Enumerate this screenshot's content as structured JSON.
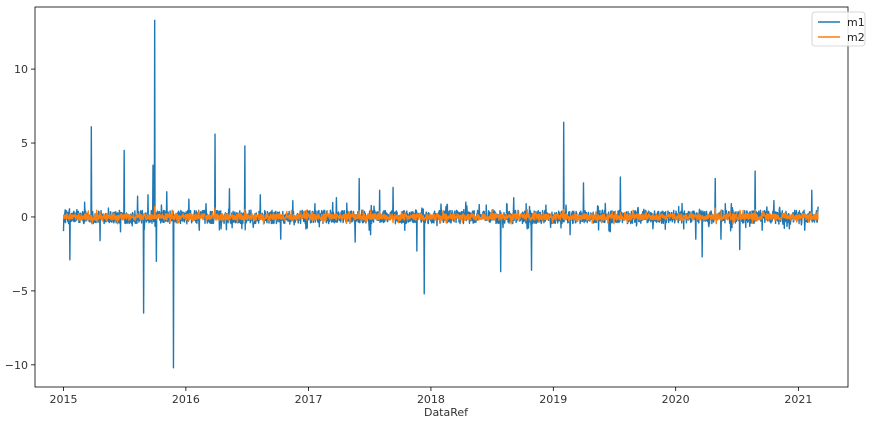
{
  "chart_data": {
    "type": "line",
    "xlabel": "DataRef",
    "ylabel": "",
    "title": "",
    "x_range": [
      "2015-01-01",
      "2021-03-01"
    ],
    "xlim": [
      "2014-10-08",
      "2021-05-29"
    ],
    "ylim": [
      -11.5,
      14.2
    ],
    "x_ticks": [
      "2015",
      "2016",
      "2017",
      "2018",
      "2019",
      "2020",
      "2021"
    ],
    "y_ticks": [
      -10,
      -5,
      0,
      5,
      10
    ],
    "grid": false,
    "legend_position": "top-right",
    "series": [
      {
        "name": "m1",
        "color": "#1f77b4",
        "spikes": [
          [
            "2015-01-20",
            -2.9
          ],
          [
            "2015-02-10",
            0.5
          ],
          [
            "2015-03-05",
            1.0
          ],
          [
            "2015-03-25",
            6.1
          ],
          [
            "2015-04-20",
            -1.6
          ],
          [
            "2015-05-15",
            0.6
          ],
          [
            "2015-06-20",
            -1.0
          ],
          [
            "2015-07-01",
            4.5
          ],
          [
            "2015-07-25",
            -0.6
          ],
          [
            "2015-08-10",
            1.4
          ],
          [
            "2015-08-28",
            -6.5
          ],
          [
            "2015-09-10",
            1.5
          ],
          [
            "2015-09-25",
            3.5
          ],
          [
            "2015-09-30",
            13.3
          ],
          [
            "2015-10-05",
            -3.0
          ],
          [
            "2015-10-20",
            0.8
          ],
          [
            "2015-11-05",
            1.7
          ],
          [
            "2015-11-25",
            -10.2
          ],
          [
            "2016-01-10",
            1.2
          ],
          [
            "2016-02-10",
            -0.9
          ],
          [
            "2016-03-01",
            0.9
          ],
          [
            "2016-03-28",
            5.6
          ],
          [
            "2016-04-15",
            -0.8
          ],
          [
            "2016-05-10",
            1.9
          ],
          [
            "2016-06-25",
            4.8
          ],
          [
            "2016-07-20",
            -0.7
          ],
          [
            "2016-08-10",
            1.5
          ],
          [
            "2016-10-10",
            -1.5
          ],
          [
            "2016-11-15",
            1.1
          ],
          [
            "2017-01-20",
            0.9
          ],
          [
            "2017-03-25",
            1.3
          ],
          [
            "2017-05-20",
            -1.7
          ],
          [
            "2017-06-01",
            2.6
          ],
          [
            "2017-07-05",
            -1.2
          ],
          [
            "2017-08-01",
            1.8
          ],
          [
            "2017-09-10",
            2.0
          ],
          [
            "2017-10-15",
            -0.9
          ],
          [
            "2017-11-20",
            -2.3
          ],
          [
            "2017-12-05",
            0.6
          ],
          [
            "2017-12-12",
            -5.2
          ],
          [
            "2018-02-15",
            0.7
          ],
          [
            "2018-04-15",
            1.0
          ],
          [
            "2018-06-15",
            0.8
          ],
          [
            "2018-07-28",
            -3.7
          ],
          [
            "2018-08-15",
            0.9
          ],
          [
            "2018-09-05",
            1.3
          ],
          [
            "2018-10-15",
            -0.8
          ],
          [
            "2018-10-28",
            -3.6
          ],
          [
            "2018-12-10",
            0.8
          ],
          [
            "2019-02-01",
            6.4
          ],
          [
            "2019-02-20",
            -1.2
          ],
          [
            "2019-04-01",
            2.3
          ],
          [
            "2019-05-15",
            0.7
          ],
          [
            "2019-06-20",
            -1.0
          ],
          [
            "2019-07-20",
            2.7
          ],
          [
            "2019-09-10",
            0.6
          ],
          [
            "2019-10-25",
            -0.8
          ],
          [
            "2020-01-10",
            0.7
          ],
          [
            "2020-03-01",
            -1.5
          ],
          [
            "2020-03-20",
            -2.7
          ],
          [
            "2020-04-28",
            2.6
          ],
          [
            "2020-05-15",
            -1.5
          ],
          [
            "2020-06-15",
            0.9
          ],
          [
            "2020-07-10",
            -2.2
          ],
          [
            "2020-08-25",
            3.1
          ],
          [
            "2020-09-15",
            -0.9
          ],
          [
            "2020-10-20",
            1.1
          ],
          [
            "2020-12-05",
            -0.8
          ],
          [
            "2021-01-20",
            -0.9
          ],
          [
            "2021-02-10",
            1.8
          ],
          [
            "2021-03-01",
            0.7
          ],
          [
            "2021-03-05",
            -1.5
          ]
        ]
      },
      {
        "name": "m2",
        "color": "#ff7f0e",
        "spikes": [
          [
            "2015-09-30",
            0.7
          ],
          [
            "2016-03-28",
            0.6
          ],
          [
            "2016-06-25",
            0.5
          ],
          [
            "2017-06-01",
            0.4
          ],
          [
            "2018-10-15",
            0.5
          ],
          [
            "2019-02-01",
            0.5
          ],
          [
            "2020-04-28",
            0.6
          ],
          [
            "2020-08-25",
            0.5
          ]
        ]
      }
    ]
  }
}
